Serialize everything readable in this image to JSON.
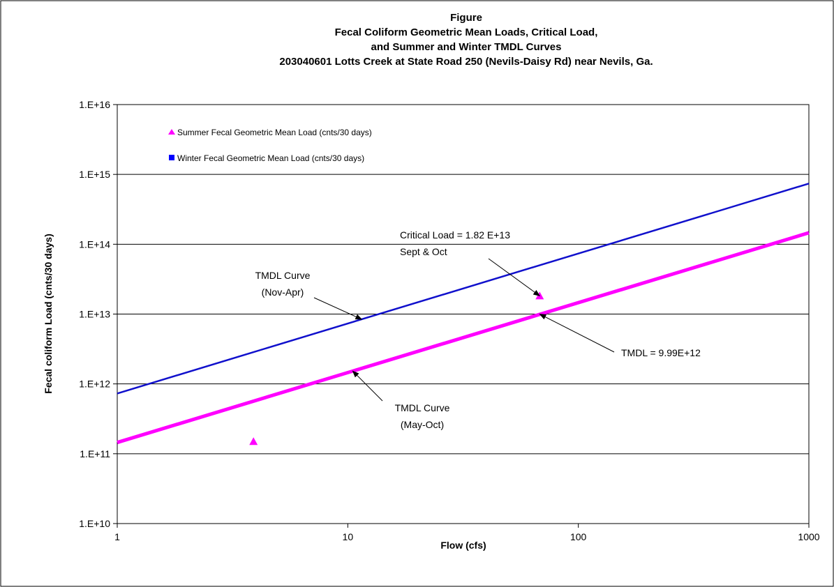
{
  "chart_data": {
    "type": "line",
    "title_lines": [
      "Figure",
      "Fecal Coliform Geometric Mean Loads,  Critical Load,",
      "and Summer and Winter TMDL Curves",
      "203040601 Lotts Creek at State Road 250 (Nevils-Daisy Rd) near Nevils, Ga."
    ],
    "xlabel": "Flow   (cfs)",
    "ylabel": "Fecal coliform  Load  (cnts/30 days)",
    "xscale": "log",
    "yscale": "log",
    "xlim": [
      1,
      1000
    ],
    "ylim": [
      10000000000.0,
      1e+16
    ],
    "x_ticks": [
      {
        "value": 1,
        "label": "1"
      },
      {
        "value": 10,
        "label": "10"
      },
      {
        "value": 100,
        "label": "100"
      },
      {
        "value": 1000,
        "label": "1000"
      }
    ],
    "y_ticks": [
      {
        "value": 10000000000.0,
        "label": "1.E+10"
      },
      {
        "value": 100000000000.0,
        "label": "1.E+11"
      },
      {
        "value": 1000000000000.0,
        "label": "1.E+12"
      },
      {
        "value": 10000000000000.0,
        "label": "1.E+13"
      },
      {
        "value": 100000000000000.0,
        "label": "1.E+14"
      },
      {
        "value": 1000000000000000.0,
        "label": "1.E+15"
      },
      {
        "value": 1e+16,
        "label": "1.E+16"
      }
    ],
    "grid": "horizontal",
    "legend_position": "top-left",
    "legend": [
      {
        "label": "Summer Fecal Geometric Mean Load (cnts/30 days)",
        "marker": "triangle",
        "color": "#ff00ff"
      },
      {
        "label": "Winter Fecal Geometric Mean Load (cnts/30 days)",
        "marker": "square",
        "color": "#0000ff"
      }
    ],
    "series": [
      {
        "key": "winter_curve",
        "kind": "line",
        "color": "#1010cc",
        "x": [
          1,
          1000
        ],
        "y": [
          730000000000.0,
          740000000000000.0
        ]
      },
      {
        "key": "summer_curve",
        "kind": "line",
        "color": "#ff00ff",
        "x": [
          1,
          1000
        ],
        "y": [
          145000000000.0,
          146000000000000.0
        ]
      },
      {
        "key": "summer_points",
        "kind": "scatter",
        "marker": "triangle",
        "color": "#ff00ff",
        "x": [
          3.9,
          68
        ],
        "y": [
          150000000000.0,
          18200000000000.0
        ]
      }
    ],
    "annotations": [
      {
        "text_lines": [
          "TMDL Curve",
          "(Nov-Apr)"
        ],
        "arrow_to": [
          11.5,
          8400000000000.0
        ]
      },
      {
        "text_lines": [
          "Critical Load = 1.82 E+13",
          "Sept & Oct"
        ],
        "arrow_to": [
          68,
          18200000000000.0
        ]
      },
      {
        "text_lines": [
          "TMDL = 9.99E+12"
        ],
        "arrow_to": [
          68,
          9990000000000.0
        ]
      },
      {
        "text_lines": [
          "TMDL Curve",
          "(May-Oct)"
        ],
        "arrow_to": [
          10.5,
          1530000000000.0
        ]
      }
    ]
  }
}
